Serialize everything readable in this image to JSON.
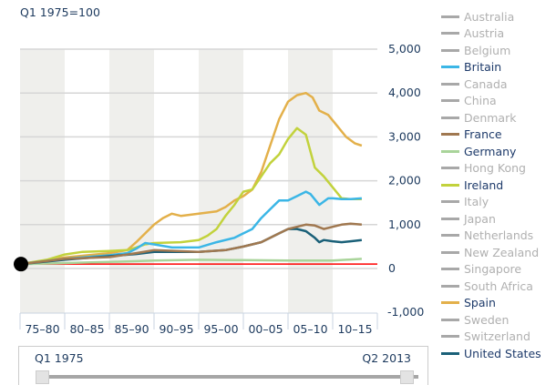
{
  "chart_data": {
    "type": "line",
    "subtitle": "Q1 1975=100",
    "ylim": [
      -1000,
      5000
    ],
    "yticks": [
      "5,000",
      "4,000",
      "3,000",
      "2,000",
      "1,000",
      "0",
      "-1,000"
    ],
    "ytick_values": [
      5000,
      4000,
      3000,
      2000,
      1000,
      0,
      -1000
    ],
    "xlim": [
      1975,
      2015
    ],
    "xticks": [
      "75–80",
      "80–85",
      "85–90",
      "90–95",
      "95–00",
      "00–05",
      "05–10",
      "10–15"
    ],
    "reference_line": {
      "value": 100,
      "color": "#ff0000"
    },
    "grid": true,
    "legend_placement": "right",
    "series": [
      {
        "name": "Spain",
        "color": "#e3b04a",
        "x": [
          1975,
          1980,
          1985,
          1987,
          1988,
          1990,
          1991,
          1992,
          1993,
          1995,
          1997,
          1998,
          1999,
          2000,
          2001,
          2002,
          2003,
          2004,
          2005,
          2006,
          2007,
          2007.75,
          2008.5,
          2009.5,
          2010.5,
          2011.5,
          2012.5,
          2013.25
        ],
        "y": [
          100,
          250,
          350,
          420,
          600,
          1000,
          1150,
          1250,
          1200,
          1250,
          1300,
          1400,
          1550,
          1650,
          1800,
          2200,
          2800,
          3400,
          3800,
          3950,
          4000,
          3900,
          3600,
          3500,
          3250,
          3000,
          2850,
          2800
        ]
      },
      {
        "name": "Ireland",
        "color": "#c2d23c",
        "x": [
          1975,
          1978,
          1980,
          1982,
          1985,
          1987,
          1988,
          1989,
          1990,
          1993,
          1995,
          1996,
          1997,
          1998,
          1999,
          2000,
          2001,
          2002,
          2003,
          2004,
          2005,
          2006,
          2007,
          2008,
          2009,
          2010,
          2011,
          2012,
          2013.25
        ],
        "y": [
          100,
          200,
          320,
          380,
          400,
          420,
          480,
          550,
          580,
          600,
          650,
          750,
          900,
          1200,
          1450,
          1750,
          1800,
          2100,
          2400,
          2600,
          2950,
          3200,
          3050,
          2300,
          2100,
          1850,
          1600,
          1580,
          1580
        ]
      },
      {
        "name": "Britain",
        "color": "#3bb6e6",
        "x": [
          1975,
          1980,
          1985,
          1987,
          1988,
          1989,
          1990,
          1992,
          1995,
          1997,
          1999,
          2000,
          2001,
          2002,
          2003,
          2004,
          2005,
          2006,
          2007,
          2007.5,
          2008.5,
          2009.5,
          2010,
          2011,
          2012,
          2013.25
        ],
        "y": [
          100,
          220,
          300,
          350,
          450,
          580,
          550,
          480,
          480,
          600,
          700,
          800,
          900,
          1150,
          1350,
          1550,
          1550,
          1650,
          1750,
          1700,
          1450,
          1600,
          1600,
          1580,
          1580,
          1600
        ]
      },
      {
        "name": "Germany",
        "color": "#a9d49a",
        "x": [
          1975,
          1985,
          1990,
          1995,
          2000,
          2005,
          2010,
          2013.25
        ],
        "y": [
          100,
          150,
          180,
          200,
          190,
          180,
          180,
          220
        ]
      },
      {
        "name": "United States",
        "color": "#1a6078",
        "x": [
          1975,
          1980,
          1985,
          1988,
          1990,
          1995,
          1998,
          2000,
          2002,
          2004,
          2005,
          2006,
          2007,
          2008,
          2008.5,
          2009,
          2010,
          2011,
          2012,
          2013.25
        ],
        "y": [
          100,
          200,
          280,
          330,
          380,
          380,
          420,
          500,
          600,
          800,
          900,
          900,
          850,
          700,
          600,
          650,
          620,
          600,
          620,
          650
        ]
      },
      {
        "name": "France",
        "color": "#a07850",
        "x": [
          1975,
          1980,
          1985,
          1988,
          1990,
          1995,
          1998,
          2000,
          2002,
          2004,
          2005,
          2006,
          2007,
          2008,
          2009,
          2010,
          2011,
          2012,
          2013.25
        ],
        "y": [
          100,
          220,
          260,
          350,
          420,
          380,
          420,
          500,
          600,
          800,
          900,
          950,
          1000,
          980,
          900,
          950,
          1000,
          1020,
          1000
        ]
      }
    ]
  },
  "legend": [
    {
      "label": "Australia",
      "active": false
    },
    {
      "label": "Austria",
      "active": false
    },
    {
      "label": "Belgium",
      "active": false
    },
    {
      "label": "Britain",
      "active": true,
      "color": "#3bb6e6"
    },
    {
      "label": "Canada",
      "active": false
    },
    {
      "label": "China",
      "active": false
    },
    {
      "label": "Denmark",
      "active": false
    },
    {
      "label": "France",
      "active": true,
      "color": "#a07850"
    },
    {
      "label": "Germany",
      "active": true,
      "color": "#a9d49a"
    },
    {
      "label": "Hong Kong",
      "active": false
    },
    {
      "label": "Ireland",
      "active": true,
      "color": "#c2d23c"
    },
    {
      "label": "Italy",
      "active": false
    },
    {
      "label": "Japan",
      "active": false
    },
    {
      "label": "Netherlands",
      "active": false
    },
    {
      "label": "New Zealand",
      "active": false
    },
    {
      "label": "Singapore",
      "active": false
    },
    {
      "label": "South Africa",
      "active": false
    },
    {
      "label": "Spain",
      "active": true,
      "color": "#e3b04a"
    },
    {
      "label": "Sweden",
      "active": false
    },
    {
      "label": "Switzerland",
      "active": false
    },
    {
      "label": "United States",
      "active": true,
      "color": "#1a6078"
    }
  ],
  "slider": {
    "start_label": "Q1 1975",
    "end_label": "Q2 2013"
  }
}
